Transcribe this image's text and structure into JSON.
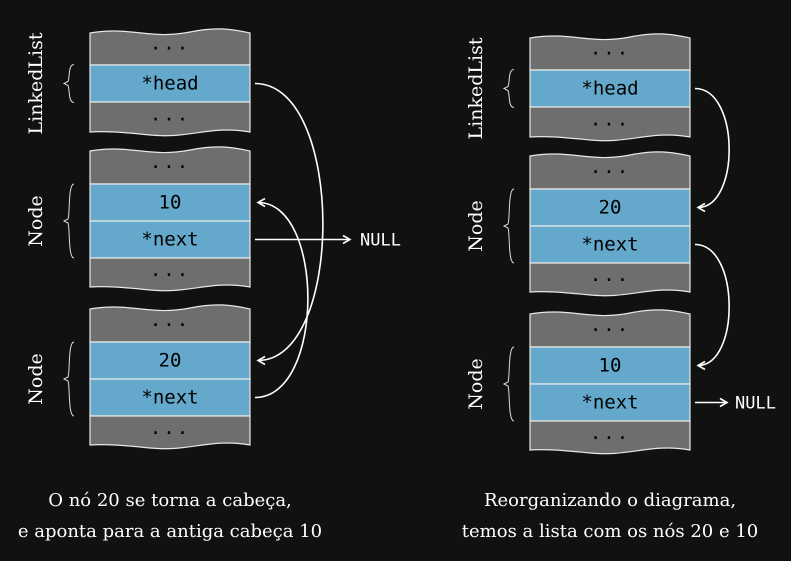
{
  "colors": {
    "background": "#111111",
    "padding_cell": "#6e6e6e",
    "field_cell": "#64a8cb",
    "arrow": "#ffffff"
  },
  "ellipsis": "...",
  "null_label": "NULL",
  "left": {
    "linkedlist_label": "LinkedList",
    "head_field": "*head",
    "nodes": [
      {
        "label": "Node",
        "value": "10",
        "next_field": "*next"
      },
      {
        "label": "Node",
        "value": "20",
        "next_field": "*next"
      }
    ],
    "caption": [
      "O nó 20 se torna a cabeça,",
      "e aponta para a antiga cabeça 10"
    ]
  },
  "right": {
    "linkedlist_label": "LinkedList",
    "head_field": "*head",
    "nodes": [
      {
        "label": "Node",
        "value": "20",
        "next_field": "*next"
      },
      {
        "label": "Node",
        "value": "10",
        "next_field": "*next"
      }
    ],
    "caption": [
      "Reorganizando o diagrama,",
      "temos a lista com os nós 20 e 10"
    ]
  }
}
